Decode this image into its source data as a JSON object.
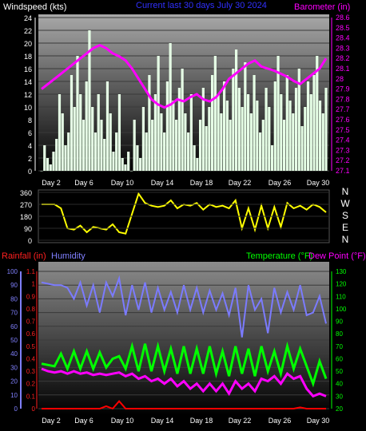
{
  "header": {
    "windspeed_label": "Windspeed (kts)",
    "title": "Current last 30 days July 30 2024",
    "barometer_label": "Barometer (in)",
    "rainfall_label": "Rainfall (in)",
    "humidity_label": "Humidity",
    "temperature_label": "Temperature (°F)",
    "dewpoint_label": "Dew Point (°F)"
  },
  "colors": {
    "wind": "#e6ffe6",
    "barometer": "#ff00ff",
    "direction": "#ffff00",
    "rain": "#ff0000",
    "humidity": "#7b7bff",
    "temperature": "#00ff00",
    "dewpoint": "#ff00ff",
    "grid": "#3a3a3a",
    "title": "#3030ff",
    "rain_axis": "#ff2020",
    "humidity_axis": "#8080ff",
    "temp_axis": "#00ff00"
  },
  "chart_data": [
    {
      "type": "area",
      "name": "wind-barometer",
      "xlabel": "",
      "x_ticks": [
        "Day 2",
        "Day 6",
        "Day 10",
        "Day 14",
        "Day 18",
        "Day 22",
        "Day 26",
        "Day 30"
      ],
      "left_axis": {
        "label": "Windspeed (kts)",
        "range": [
          0,
          24
        ],
        "ticks": [
          0,
          2,
          4,
          6,
          8,
          10,
          12,
          14,
          16,
          18,
          20,
          22,
          24
        ]
      },
      "right_axis": {
        "label": "Barometer (in)",
        "range": [
          27.1,
          28.6
        ],
        "ticks": [
          "27.1",
          "27.2",
          "27.3",
          "27.4",
          "27.5",
          "27.6",
          "27.7",
          "27.8",
          "27.9",
          "28",
          "28.1",
          "28.2",
          "28.3",
          "28.4",
          "28.5",
          "28.6"
        ]
      },
      "series": [
        {
          "name": "Windspeed",
          "values": [
            0,
            4,
            2,
            1,
            3,
            5,
            12,
            9,
            4,
            6,
            15,
            10,
            18,
            12,
            8,
            14,
            22,
            10,
            6,
            12,
            8,
            5,
            14,
            9,
            3,
            6,
            12,
            2,
            1,
            3,
            0,
            8,
            4,
            2,
            10,
            6,
            15,
            8,
            12,
            18,
            9,
            6,
            14,
            20,
            11,
            8,
            13,
            16,
            9,
            6,
            12,
            4,
            2,
            8,
            13,
            7,
            10,
            15,
            18,
            12,
            9,
            14,
            11,
            8,
            16,
            19,
            13,
            10,
            17,
            12,
            9,
            15,
            11,
            6,
            8,
            13,
            10,
            4,
            14,
            18,
            12,
            8,
            15,
            11,
            9,
            13,
            16,
            7,
            10,
            14,
            12,
            15,
            18,
            11,
            9,
            13
          ]
        },
        {
          "name": "Barometer",
          "values": [
            27.9,
            27.95,
            28.0,
            28.05,
            28.1,
            28.15,
            28.2,
            28.25,
            28.3,
            28.33,
            28.3,
            28.25,
            28.22,
            28.18,
            28.1,
            28.0,
            27.9,
            27.8,
            27.75,
            27.72,
            27.75,
            27.8,
            27.78,
            27.82,
            27.85,
            27.8,
            27.78,
            27.82,
            27.9,
            28.0,
            28.05,
            28.1,
            28.15,
            28.18,
            28.12,
            28.1,
            28.08,
            28.05,
            28.02,
            27.98,
            27.95,
            28.0,
            28.05,
            28.1,
            28.2
          ]
        }
      ]
    },
    {
      "type": "line",
      "name": "wind-direction",
      "left_axis": {
        "range": [
          0,
          360
        ],
        "ticks": [
          0,
          90,
          180,
          270,
          360
        ]
      },
      "right_axis_labels": [
        "N",
        "W",
        "S",
        "E",
        "N"
      ],
      "series": [
        {
          "name": "Direction",
          "values": [
            270,
            270,
            270,
            240,
            90,
            80,
            110,
            60,
            100,
            90,
            80,
            120,
            60,
            50,
            200,
            350,
            280,
            260,
            250,
            260,
            300,
            240,
            270,
            260,
            280,
            230,
            270,
            250,
            260,
            240,
            300,
            90,
            240,
            80,
            260,
            90,
            250,
            100,
            280,
            240,
            260,
            230,
            270,
            250,
            210
          ]
        }
      ]
    },
    {
      "type": "line",
      "name": "rain-humidity-temp",
      "x_ticks": [
        "Day 2",
        "Day 6",
        "Day 10",
        "Day 14",
        "Day 18",
        "Day 22",
        "Day 26",
        "Day 30"
      ],
      "rain_axis": {
        "label": "Rainfall (in)",
        "range": [
          0,
          1.1
        ],
        "ticks": [
          "0",
          "0.1",
          "0.2",
          "0.3",
          "0.4",
          "0.5",
          "0.6",
          "0.7",
          "0.8",
          "0.9",
          "1",
          "1.1"
        ]
      },
      "humidity_axis": {
        "label": "Humidity",
        "range": [
          0,
          100
        ],
        "ticks": [
          0,
          10,
          20,
          30,
          40,
          50,
          60,
          70,
          80,
          90,
          100
        ]
      },
      "temp_axis": {
        "label": "Temperature (°F)",
        "range": [
          20,
          130
        ],
        "ticks": [
          20,
          30,
          40,
          50,
          60,
          70,
          80,
          90,
          100,
          110,
          120,
          130
        ]
      },
      "series": [
        {
          "name": "Rainfall",
          "values": [
            0,
            0,
            0,
            0,
            0,
            0,
            0,
            0,
            0,
            0,
            0.02,
            0,
            0.06,
            0,
            0,
            0,
            0,
            0,
            0,
            0,
            0,
            0,
            0,
            0,
            0,
            0,
            0,
            0,
            0,
            0,
            0,
            0,
            0,
            0,
            0,
            0,
            0,
            0,
            0,
            0,
            0.01,
            0,
            0,
            0,
            0
          ]
        },
        {
          "name": "Humidity",
          "values": [
            92,
            91,
            90,
            90,
            88,
            80,
            92,
            75,
            90,
            70,
            92,
            82,
            95,
            68,
            90,
            72,
            92,
            70,
            88,
            72,
            85,
            70,
            90,
            72,
            88,
            70,
            86,
            72,
            84,
            68,
            88,
            52,
            90,
            72,
            80,
            55,
            88,
            70,
            85,
            72,
            90,
            68,
            70,
            82,
            62
          ]
        },
        {
          "name": "Temperature",
          "values": [
            56,
            55,
            54,
            64,
            52,
            66,
            52,
            66,
            52,
            65,
            53,
            60,
            62,
            52,
            70,
            50,
            72,
            50,
            70,
            50,
            68,
            48,
            70,
            48,
            68,
            48,
            70,
            48,
            66,
            46,
            70,
            48,
            68,
            46,
            70,
            50,
            66,
            48,
            70,
            52,
            68,
            54,
            40,
            58,
            44
          ]
        },
        {
          "name": "Dew Point",
          "values": [
            52,
            50,
            49,
            50,
            48,
            50,
            48,
            49,
            47,
            48,
            47,
            48,
            49,
            46,
            48,
            44,
            46,
            42,
            44,
            40,
            44,
            38,
            42,
            36,
            40,
            34,
            40,
            34,
            40,
            32,
            42,
            36,
            40,
            34,
            44,
            42,
            46,
            40,
            48,
            44,
            46,
            36,
            30,
            32,
            30
          ]
        }
      ]
    }
  ]
}
